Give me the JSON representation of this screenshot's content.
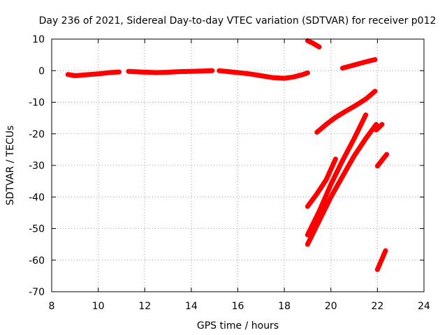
{
  "chart_data": {
    "type": "scatter",
    "title": "Day 236 of 2021, Sidereal Day-to-day VTEC variation (SDTVAR) for receiver p012",
    "xlabel": "GPS time / hours",
    "ylabel": "SDTVAR / TECUs",
    "xlim": [
      8,
      24
    ],
    "ylim": [
      -70,
      10
    ],
    "xticks": [
      8,
      10,
      12,
      14,
      16,
      18,
      20,
      22,
      24
    ],
    "yticks": [
      10,
      0,
      -10,
      -20,
      -30,
      -40,
      -50,
      -60,
      -70
    ],
    "grid": true,
    "legend": "none",
    "color": "#ff0000",
    "series": [
      {
        "x": [
          8.7,
          9.0,
          9.5,
          10.0,
          10.5,
          10.9
        ],
        "y": [
          -1.2,
          -1.6,
          -1.3,
          -1.0,
          -0.6,
          -0.4
        ]
      },
      {
        "x": [
          11.3,
          11.8,
          12.5,
          13.0,
          13.5,
          14.0,
          14.5,
          14.9
        ],
        "y": [
          -0.2,
          -0.4,
          -0.6,
          -0.5,
          -0.3,
          -0.2,
          -0.1,
          0.0
        ]
      },
      {
        "x": [
          15.2,
          15.6,
          16.0,
          16.5,
          17.0,
          17.5,
          18.0,
          18.4,
          18.8,
          19.0
        ],
        "y": [
          0.0,
          -0.3,
          -0.6,
          -1.0,
          -1.6,
          -2.2,
          -2.4,
          -2.0,
          -1.2,
          -0.7
        ]
      },
      {
        "x": [
          19.0,
          19.2,
          19.5
        ],
        "y": [
          9.5,
          8.8,
          7.5
        ]
      },
      {
        "x": [
          20.5,
          21.0,
          21.5,
          21.9
        ],
        "y": [
          0.8,
          1.8,
          2.8,
          3.5
        ]
      },
      {
        "x": [
          19.4,
          19.8,
          20.2,
          20.6,
          21.0,
          21.5,
          21.9
        ],
        "y": [
          -19.5,
          -17.0,
          -14.8,
          -13.0,
          -11.3,
          -9.0,
          -6.5
        ]
      },
      {
        "x": [
          19.0,
          19.4,
          19.8,
          20.2
        ],
        "y": [
          -43.0,
          -39.0,
          -34.5,
          -28.0
        ]
      },
      {
        "x": [
          19.0,
          19.5,
          20.0,
          20.5,
          21.0,
          21.5
        ],
        "y": [
          -52.0,
          -44.5,
          -36.0,
          -28.5,
          -21.5,
          -14.0
        ]
      },
      {
        "x": [
          19.0,
          19.5,
          20.0,
          20.5,
          21.0,
          21.5,
          21.95
        ],
        "y": [
          -55.0,
          -47.5,
          -40.0,
          -33.5,
          -27.0,
          -21.5,
          -17.0
        ]
      },
      {
        "x": [
          21.95,
          22.2
        ],
        "y": [
          -18.8,
          -17.0
        ]
      },
      {
        "x": [
          22.0,
          22.4
        ],
        "y": [
          -30.2,
          -26.5
        ]
      },
      {
        "x": [
          22.0,
          22.35
        ],
        "y": [
          -63.0,
          -57.0
        ]
      }
    ]
  }
}
